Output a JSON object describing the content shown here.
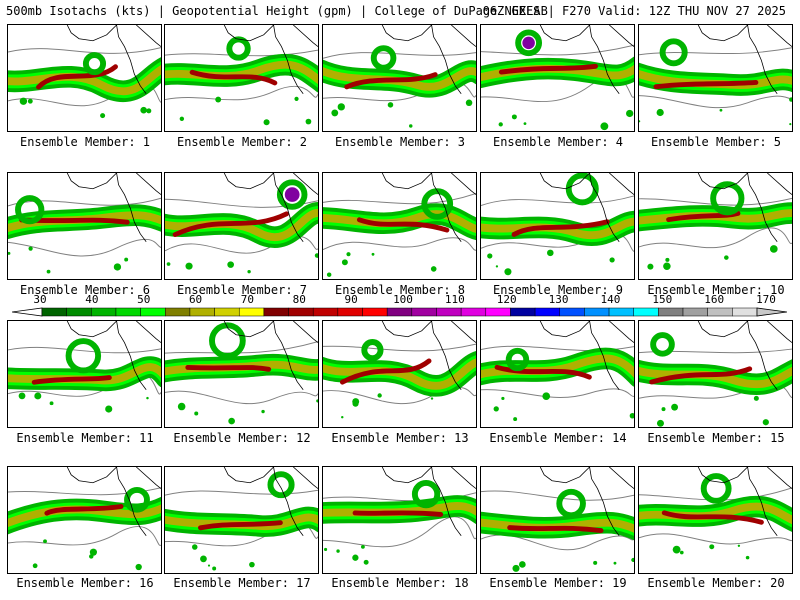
{
  "header": {
    "left": "500mb Isotachs (kts) | Geopotential Height (gpm) | College of DuPage NEXLAB",
    "right": "06Z GEFS | F270 Valid: 12Z THU NOV 27 2025"
  },
  "members": [
    "Ensemble Member: 1",
    "Ensemble Member: 2",
    "Ensemble Member: 3",
    "Ensemble Member: 4",
    "Ensemble Member: 5",
    "Ensemble Member: 6",
    "Ensemble Member: 7",
    "Ensemble Member: 8",
    "Ensemble Member: 9",
    "Ensemble Member: 10",
    "Ensemble Member: 11",
    "Ensemble Member: 12",
    "Ensemble Member: 13",
    "Ensemble Member: 14",
    "Ensemble Member: 15",
    "Ensemble Member: 16",
    "Ensemble Member: 17",
    "Ensemble Member: 18",
    "Ensemble Member: 19",
    "Ensemble Member: 20"
  ],
  "colorbar": {
    "labels": [
      "30",
      "40",
      "50",
      "60",
      "70",
      "80",
      "90",
      "100",
      "110",
      "120",
      "130",
      "140",
      "150",
      "160",
      "170"
    ],
    "colors": [
      "#006400",
      "#008c00",
      "#00b400",
      "#00d800",
      "#00ff00",
      "#7f7f00",
      "#b0b000",
      "#d0d000",
      "#ffff00",
      "#800000",
      "#a00000",
      "#c00000",
      "#e00000",
      "#ff0000",
      "#800080",
      "#a000a0",
      "#c000c0",
      "#e000e0",
      "#ff00ff",
      "#0000a0",
      "#0000ff",
      "#0050ff",
      "#0090ff",
      "#00c0ff",
      "#00ffff",
      "#808080",
      "#a0a0a0",
      "#c0c0c0",
      "#e0e0e0"
    ]
  },
  "colors": {
    "jet_green": "#00b400",
    "jet_light": "#00ff00",
    "jet_olive": "#b0b000",
    "jet_max": "#a00000",
    "jet_purple": "#8000a0",
    "height_contour": "#808080",
    "coastline": "#000000"
  }
}
